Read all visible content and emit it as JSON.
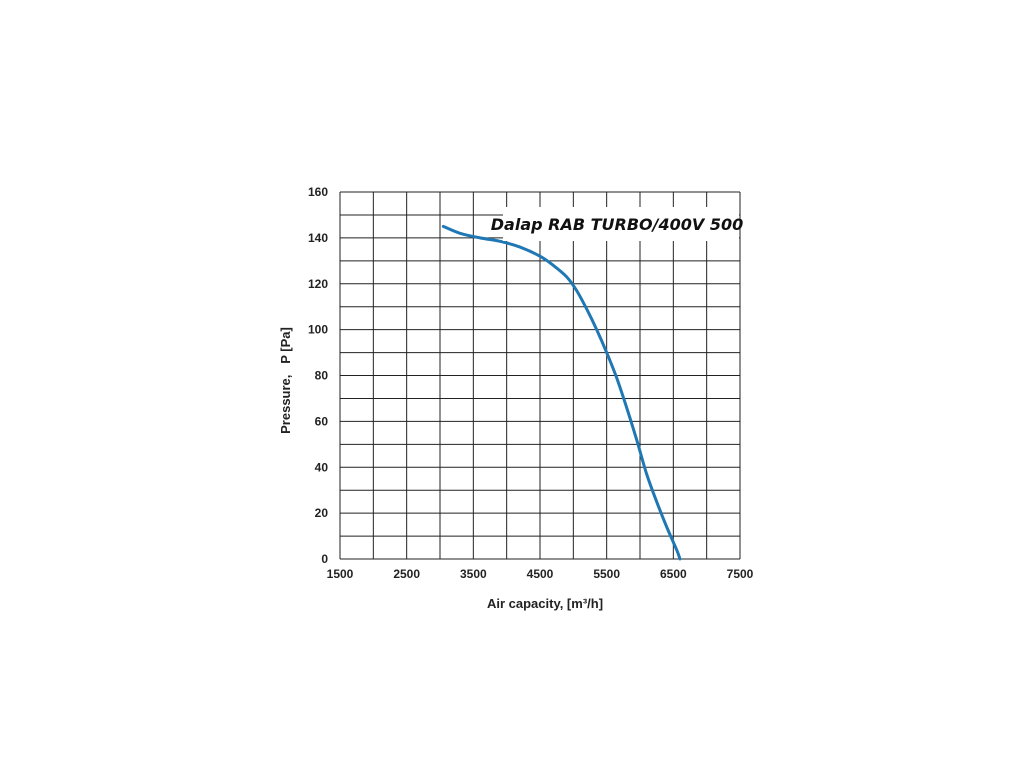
{
  "chart_data": {
    "type": "line",
    "title": "Dalap RAB TURBO/400V 500",
    "xlabel": "Air capacity, [m³/h]",
    "ylabel": "Pressure,   P [Pa]",
    "xlim": [
      1500,
      7500
    ],
    "ylim": [
      0,
      160
    ],
    "xticks": [
      1500,
      2500,
      3500,
      4500,
      5500,
      6500,
      7500
    ],
    "yticks": [
      0,
      20,
      40,
      60,
      80,
      100,
      120,
      140,
      160
    ],
    "grid": true,
    "series": [
      {
        "color": "#1f78b4",
        "x": [
          3050,
          3300,
          3600,
          3900,
          4200,
          4500,
          4700,
          4900,
          5050,
          5200,
          5350,
          5500,
          5650,
          5800,
          5950,
          6100,
          6250,
          6400,
          6550,
          6600
        ],
        "y": [
          145,
          142,
          140,
          138.5,
          136,
          132,
          128,
          123,
          117,
          109,
          100,
          90,
          79,
          66,
          52,
          37,
          25,
          14,
          4,
          0
        ]
      }
    ]
  }
}
